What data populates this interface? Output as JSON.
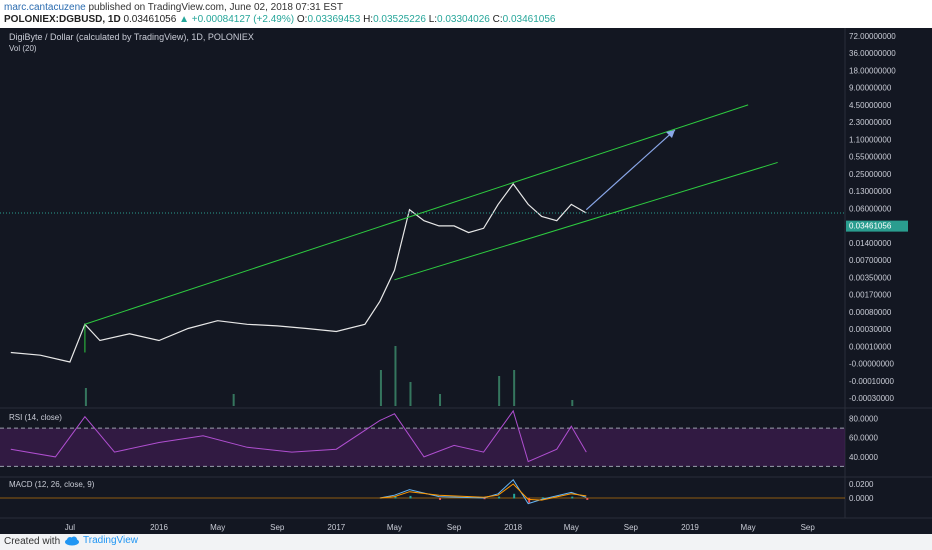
{
  "header": {
    "author": "marc.cantacuzene",
    "published_text": "published on TradingView.com, June 02, 2018 07:31 EST",
    "symbol": "POLONIEX:DGBUSD, 1D",
    "last": "0.03461056",
    "change": "+0.00084127 (+2.49%)",
    "o_label": "O:",
    "o_value": "0.03369453",
    "h_label": "H:",
    "h_value": "0.03525226",
    "l_label": "L:",
    "l_value": "0.03304026",
    "c_label": "C:",
    "c_value": "0.03461056"
  },
  "chart": {
    "title": "DigiByte / Dollar (calculated by TradingView), 1D, POLONIEX",
    "vol_label": "Vol (20)",
    "rsi_label": "RSI (14, close)",
    "macd_label": "MACD (12, 26, close, 9)",
    "price_tag": "0.03461056"
  },
  "footer": {
    "created_with": "Created with",
    "brand": "TradingView"
  },
  "colors": {
    "background": "#131722",
    "channel": "#2ecc40",
    "arrow": "#8aa7e8",
    "candle_up": "#e8e8e8",
    "candle_down": "#d14b4b",
    "rsi": "#b04fd1",
    "macd": "#64b5f6",
    "signal": "#ff9800",
    "hist_pos": "#26a69a",
    "hist_neg": "#ef5350"
  },
  "chart_data": [
    {
      "type": "line",
      "name": "price",
      "yscale": "log",
      "x": [
        "2015-03",
        "2015-05",
        "2015-07",
        "2015-08",
        "2015-09",
        "2015-11",
        "2016-01",
        "2016-03",
        "2016-05",
        "2016-07",
        "2016-09",
        "2016-11",
        "2017-01",
        "2017-03",
        "2017-04",
        "2017-05",
        "2017-06",
        "2017-07",
        "2017-08",
        "2017-09",
        "2017-10",
        "2017-11",
        "2017-12",
        "2018-01",
        "2018-02",
        "2018-03",
        "2018-04",
        "2018-05",
        "2018-06"
      ],
      "values": [
        9e-05,
        8e-05,
        6e-05,
        0.0003,
        0.00015,
        0.0002,
        0.00015,
        0.00025,
        0.00035,
        0.0003,
        0.00028,
        0.00025,
        0.00022,
        0.0003,
        0.0008,
        0.003,
        0.04,
        0.025,
        0.02,
        0.02,
        0.015,
        0.018,
        0.05,
        0.12,
        0.05,
        0.03,
        0.025,
        0.05,
        0.0346
      ],
      "price_axis": [
        "72.00000000",
        "36.00000000",
        "18.00000000",
        "9.00000000",
        "4.50000000",
        "2.30000000",
        "1.10000000",
        "0.55000000",
        "0.25000000",
        "0.13000000",
        "0.06000000",
        "0.03461056",
        "0.01400000",
        "0.00700000",
        "0.00350000",
        "0.00170000",
        "0.00080000",
        "0.00030000",
        "0.00010000",
        "-0.00000000",
        "-0.00010000",
        "-0.00030000"
      ],
      "time_axis": [
        "Jul",
        "2016",
        "May",
        "Sep",
        "2017",
        "May",
        "Sep",
        "2018",
        "May",
        "Sep",
        "2019",
        "May",
        "Sep"
      ],
      "annotations": [
        "upper channel line",
        "lower channel line",
        "projection arrow"
      ]
    },
    {
      "type": "bar",
      "name": "volume",
      "x": [
        "2015-08",
        "2016-06",
        "2017-04",
        "2017-05",
        "2017-06",
        "2017-08",
        "2017-12",
        "2018-01",
        "2018-05"
      ],
      "values": [
        3,
        2,
        6,
        10,
        4,
        2,
        5,
        6,
        1
      ]
    },
    {
      "type": "line",
      "name": "RSI",
      "ylim": [
        20,
        90
      ],
      "ticks": [
        "80.0000",
        "60.0000",
        "40.0000"
      ],
      "bands": [
        70,
        30
      ],
      "x": [
        "2015-03",
        "2015-06",
        "2015-08",
        "2015-10",
        "2016-01",
        "2016-04",
        "2016-07",
        "2016-10",
        "2017-01",
        "2017-04",
        "2017-05",
        "2017-07",
        "2017-09",
        "2017-11",
        "2018-01",
        "2018-02",
        "2018-04",
        "2018-05",
        "2018-06"
      ],
      "values": [
        48,
        40,
        82,
        45,
        55,
        62,
        50,
        45,
        48,
        78,
        85,
        40,
        52,
        45,
        88,
        35,
        48,
        72,
        45
      ]
    },
    {
      "type": "line",
      "name": "MACD",
      "ticks": [
        "0.0200",
        "0.0000"
      ],
      "x": [
        "2017-04",
        "2017-05",
        "2017-06",
        "2017-08",
        "2017-11",
        "2017-12",
        "2018-01",
        "2018-02",
        "2018-03",
        "2018-05",
        "2018-06"
      ],
      "macd": [
        0.0,
        0.004,
        0.012,
        0.002,
        0.0,
        0.006,
        0.026,
        -0.008,
        -0.002,
        0.008,
        0.001
      ],
      "signal": [
        0.0,
        0.002,
        0.009,
        0.004,
        0.001,
        0.004,
        0.02,
        -0.002,
        -0.003,
        0.006,
        0.003
      ]
    }
  ]
}
